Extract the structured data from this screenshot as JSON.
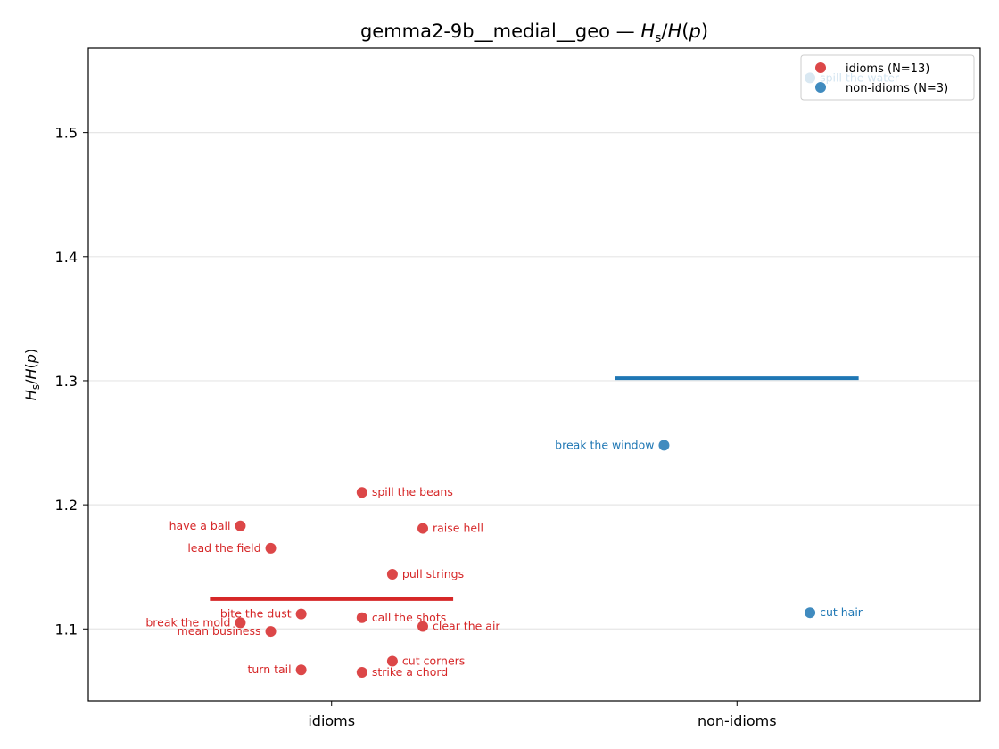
{
  "chart_data": {
    "type": "scatter",
    "title": "gemma2-9b__medial__geo — H_s/H(p)",
    "title_parts": {
      "prefix": "gemma2-9b__medial__geo — ",
      "h": "H",
      "sub": "s",
      "mid": "/",
      "h2": "H",
      "p": "p"
    },
    "ylabel_parts": {
      "h": "H",
      "sub": "s",
      "mid": "/",
      "h2": "H",
      "p": "p"
    },
    "categories": [
      "idioms",
      "non-idioms"
    ],
    "ylim": [
      1.042,
      1.568
    ],
    "yticks": [
      1.1,
      1.2,
      1.3,
      1.4,
      1.5
    ],
    "ytick_labels": [
      "1.1",
      "1.2",
      "1.3",
      "1.4",
      "1.5"
    ],
    "grid": "horizontal",
    "legend_position": "top-right",
    "series": [
      {
        "name": "idioms (N=13)",
        "category": "idioms",
        "color": "#d62728",
        "mean": 1.124,
        "points": [
          {
            "label": "spill the beans",
            "offset": 0.075,
            "y": 1.21,
            "side": "right"
          },
          {
            "label": "have a ball",
            "offset": -0.225,
            "y": 1.183,
            "side": "left"
          },
          {
            "label": "raise hell",
            "offset": 0.225,
            "y": 1.181,
            "side": "right"
          },
          {
            "label": "lead the field",
            "offset": -0.15,
            "y": 1.165,
            "side": "left"
          },
          {
            "label": "pull strings",
            "offset": 0.15,
            "y": 1.144,
            "side": "right"
          },
          {
            "label": "bite the dust",
            "offset": -0.075,
            "y": 1.112,
            "side": "left"
          },
          {
            "label": "call the shots",
            "offset": 0.075,
            "y": 1.109,
            "side": "right"
          },
          {
            "label": "break the mold",
            "offset": -0.225,
            "y": 1.105,
            "side": "left"
          },
          {
            "label": "clear the air",
            "offset": 0.225,
            "y": 1.102,
            "side": "right"
          },
          {
            "label": "mean business",
            "offset": -0.15,
            "y": 1.098,
            "side": "left"
          },
          {
            "label": "cut corners",
            "offset": 0.15,
            "y": 1.074,
            "side": "right"
          },
          {
            "label": "turn tail",
            "offset": -0.075,
            "y": 1.067,
            "side": "left"
          },
          {
            "label": "strike a chord",
            "offset": 0.075,
            "y": 1.065,
            "side": "right"
          }
        ]
      },
      {
        "name": "non-idioms (N=3)",
        "category": "non-idioms",
        "color": "#1f77b4",
        "mean": 1.302,
        "points": [
          {
            "label": "spill the water",
            "offset": 0.18,
            "y": 1.544,
            "side": "right"
          },
          {
            "label": "break the window",
            "offset": -0.18,
            "y": 1.248,
            "side": "left"
          },
          {
            "label": "cut hair",
            "offset": 0.18,
            "y": 1.113,
            "side": "right"
          }
        ]
      }
    ]
  }
}
